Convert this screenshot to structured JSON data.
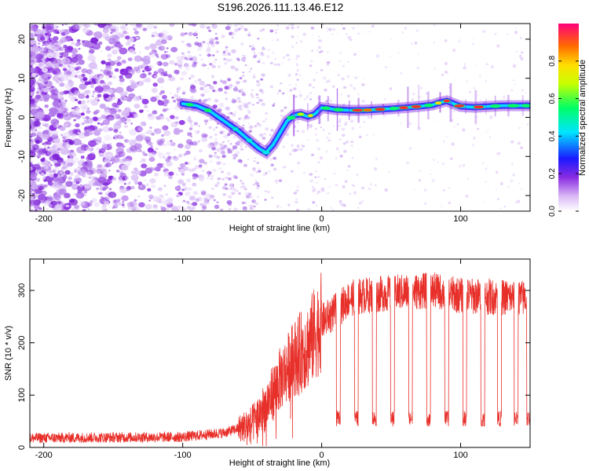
{
  "title": "S196.2026.111.13.46.E12",
  "chart_data": [
    {
      "type": "heatmap",
      "name": "spectrogram",
      "xlabel": "Height of straight line (km)",
      "ylabel": "Frequency (Hz)",
      "xlim": [
        -210,
        150
      ],
      "ylim": [
        -24,
        24
      ],
      "xticks": [
        -200,
        -100,
        0,
        100
      ],
      "yticks": [
        -20,
        -10,
        0,
        10,
        20
      ],
      "ridge": {
        "x": [
          -100,
          -90,
          -80,
          -70,
          -60,
          -55,
          -50,
          -45,
          -40,
          -35,
          -30,
          -25,
          -20,
          -15,
          -10,
          -5,
          0,
          10,
          20,
          30,
          40,
          50,
          60,
          70,
          80,
          85,
          90,
          95,
          100,
          110,
          120,
          130,
          140,
          150
        ],
        "y": [
          3.5,
          3.0,
          1.5,
          -1.0,
          -3.5,
          -5.0,
          -6.5,
          -8.0,
          -9.0,
          -7.0,
          -4.0,
          -1.0,
          0.5,
          0.8,
          0.2,
          0.8,
          2.5,
          2.0,
          1.8,
          1.8,
          2.0,
          2.2,
          2.5,
          2.8,
          3.2,
          3.8,
          4.2,
          3.5,
          2.8,
          2.6,
          2.8,
          3.0,
          3.0,
          3.0
        ]
      },
      "colorbar": {
        "label": "Normalized spectral amplitude",
        "range": [
          0.0,
          1.0
        ],
        "ticks": [
          0.0,
          0.2,
          0.4,
          0.6,
          0.8
        ],
        "tick_labels": [
          "0.0",
          "0.2",
          "0.4",
          "0.6",
          "0.8"
        ]
      }
    },
    {
      "type": "line",
      "name": "snr",
      "xlabel": "Height of straight line (km)",
      "ylabel": "SNR (10 * v/v)",
      "xlim": [
        -210,
        150
      ],
      "ylim": [
        0,
        360
      ],
      "xticks": [
        -200,
        -100,
        0,
        100
      ],
      "yticks": [
        0,
        100,
        200,
        300
      ],
      "color": "#e8302a",
      "trend": {
        "x": [
          -210,
          -100,
          -70,
          -50,
          -40,
          -30,
          -20,
          -10,
          0,
          10,
          20,
          30,
          50,
          80,
          100,
          150
        ],
        "y": [
          18,
          20,
          28,
          45,
          80,
          130,
          170,
          195,
          240,
          260,
          285,
          290,
          295,
          300,
          290,
          285
        ]
      },
      "dropouts_x": [
        12,
        25,
        38,
        51,
        64,
        77,
        90,
        103,
        116,
        128,
        140,
        149
      ],
      "dropout_level": 55
    }
  ],
  "colors": {
    "line": "#e8302a",
    "scatter": "#8a2be2"
  }
}
